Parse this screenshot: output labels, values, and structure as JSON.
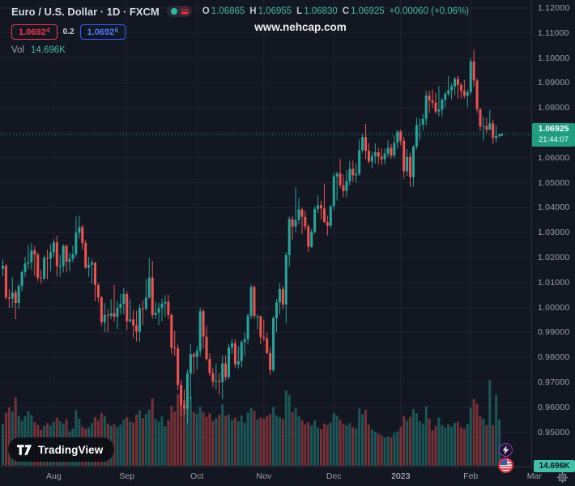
{
  "header": {
    "symbol_title": "Euro / U.S. Dollar · 1D · FXCM",
    "ohlc": {
      "o_label": "O",
      "o": "1.06865",
      "h_label": "H",
      "h": "1.06955",
      "l_label": "L",
      "l": "1.06830",
      "c_label": "C",
      "c": "1.06925",
      "change": "+0.00060 (+0.06%)"
    },
    "bid": "1.0692",
    "bid_sup": "4",
    "spread": "0.2",
    "ask": "1.0692",
    "ask_sup": "6",
    "vol_label": "Vol",
    "vol_value": "14.696K"
  },
  "watermark": "www.nehcap.com",
  "logo": {
    "wordmark": "TradingView"
  },
  "labels": {
    "last_price": "1.06925",
    "countdown": "21:44:07",
    "last_volume": "14.696K"
  },
  "colors": {
    "background": "#131722",
    "up": "#26a69a",
    "down": "#ef5350",
    "grid": "#1e2430",
    "bid_red": "#f23645",
    "ask_blue": "#2962ff",
    "price_label_bg": "#1f9e82",
    "vol_label_bg": "#41c0a9",
    "axis_text": "#9aa0aa"
  },
  "chart_data": {
    "type": "candlestick",
    "title": "Euro / U.S. Dollar, 1D, FXCM",
    "legend_position": "top-left",
    "grid": true,
    "y_axis": {
      "min": 0.95,
      "max": 1.12,
      "tick_step": 0.01,
      "labels": [
        "1.12000",
        "1.11000",
        "1.10000",
        "1.09000",
        "1.08000",
        "1.07000",
        "1.06000",
        "1.05000",
        "1.04000",
        "1.03000",
        "1.02000",
        "1.01000",
        "1.00000",
        "0.99000",
        "0.98000",
        "0.97000",
        "0.96000",
        "0.95000"
      ]
    },
    "x_axis": {
      "labels": [
        {
          "text": "Aug",
          "index": 16
        },
        {
          "text": "Sep",
          "index": 39
        },
        {
          "text": "Oct",
          "index": 61
        },
        {
          "text": "Nov",
          "index": 82
        },
        {
          "text": "Dec",
          "index": 104
        },
        {
          "text": "2023",
          "index": 125,
          "year": true
        },
        {
          "text": "Feb",
          "index": 147
        },
        {
          "text": "Mar",
          "index": 167
        }
      ]
    },
    "last": {
      "close": 1.06925,
      "countdown": "21:44:07",
      "volume_k": 14.696
    },
    "volume_unit": "K",
    "candles_format": [
      "open",
      "high",
      "low",
      "close",
      "volume_k"
    ],
    "candles": [
      [
        1.0155,
        1.0192,
        1.0125,
        1.0168,
        13.2
      ],
      [
        1.0168,
        1.0175,
        1.0032,
        1.004,
        16.8
      ],
      [
        1.004,
        1.0074,
        0.9998,
        1.0036,
        18.4
      ],
      [
        1.0036,
        1.0122,
        1.0,
        1.006,
        17.1
      ],
      [
        1.006,
        1.0072,
        0.9953,
        1.0018,
        21.6
      ],
      [
        1.0018,
        1.0095,
        0.9995,
        1.0086,
        15.9
      ],
      [
        1.0086,
        1.0149,
        1.0065,
        1.0142,
        14.2
      ],
      [
        1.0142,
        1.0202,
        1.0122,
        1.0176,
        15.7
      ],
      [
        1.0176,
        1.025,
        1.0155,
        1.0182,
        17.3
      ],
      [
        1.0182,
        1.0258,
        1.015,
        1.0228,
        16.1
      ],
      [
        1.0228,
        1.0246,
        1.0128,
        1.0212,
        13.8
      ],
      [
        1.0212,
        1.022,
        1.0105,
        1.0119,
        12.9
      ],
      [
        1.0119,
        1.0151,
        1.0096,
        1.0116,
        11.4
      ],
      [
        1.0116,
        1.0208,
        1.0108,
        1.0199,
        12.6
      ],
      [
        1.0199,
        1.0232,
        1.0113,
        1.0196,
        13.5
      ],
      [
        1.0196,
        1.0254,
        1.0144,
        1.0221,
        12.8
      ],
      [
        1.0221,
        1.0274,
        1.0202,
        1.0261,
        13.9
      ],
      [
        1.0261,
        1.0288,
        1.0124,
        1.0166,
        15.2
      ],
      [
        1.0166,
        1.021,
        1.0123,
        1.0166,
        14.1
      ],
      [
        1.0166,
        1.0254,
        1.014,
        1.0247,
        13.3
      ],
      [
        1.0247,
        1.0251,
        1.0141,
        1.0183,
        14.7
      ],
      [
        1.0183,
        1.0221,
        1.0145,
        1.0194,
        10.9
      ],
      [
        1.0194,
        1.0248,
        1.0181,
        1.0213,
        11.8
      ],
      [
        1.0213,
        1.0364,
        1.0202,
        1.0299,
        17.6
      ],
      [
        1.0299,
        1.0368,
        1.0276,
        1.0322,
        14.9
      ],
      [
        1.0322,
        1.0332,
        1.0232,
        1.0258,
        12.4
      ],
      [
        1.0258,
        1.0269,
        1.0154,
        1.016,
        11.7
      ],
      [
        1.016,
        1.0203,
        1.0122,
        1.0171,
        12.2
      ],
      [
        1.0171,
        1.0192,
        1.0096,
        1.018,
        13.6
      ],
      [
        1.018,
        1.0183,
        1.0026,
        1.009,
        15.4
      ],
      [
        1.009,
        1.0098,
        1.0021,
        1.004,
        14.3
      ],
      [
        1.004,
        1.0046,
        0.9926,
        0.9941,
        16.7
      ],
      [
        0.9941,
        1.0018,
        0.9901,
        0.997,
        15.8
      ],
      [
        0.997,
        0.9992,
        0.9899,
        0.9967,
        13.4
      ],
      [
        0.9967,
        1.0033,
        0.9953,
        0.9977,
        12.7
      ],
      [
        0.9977,
        1.009,
        0.9944,
        0.9963,
        13.1
      ],
      [
        0.9963,
        1.0027,
        0.9914,
        0.9999,
        12.3
      ],
      [
        0.9999,
        1.0055,
        0.9972,
        1.0015,
        13.0
      ],
      [
        1.0015,
        1.0079,
        0.9972,
        1.0054,
        14.6
      ],
      [
        1.0054,
        1.0064,
        0.991,
        0.9945,
        15.3
      ],
      [
        0.9945,
        1.0033,
        0.9939,
        0.9952,
        14.0
      ],
      [
        0.9952,
        0.9989,
        0.9878,
        0.9928,
        13.7
      ],
      [
        0.9928,
        0.9987,
        0.9864,
        0.9903,
        16.2
      ],
      [
        0.9903,
        1.0013,
        0.9863,
        0.9997,
        17.5
      ],
      [
        0.9997,
        1.0029,
        0.993,
        0.9995,
        15.1
      ],
      [
        0.9995,
        1.0113,
        0.9987,
        1.004,
        16.4
      ],
      [
        1.004,
        1.0198,
        1.0035,
        1.012,
        17.8
      ],
      [
        1.012,
        1.0187,
        0.9955,
        0.997,
        21.3
      ],
      [
        0.997,
        1.0023,
        0.9954,
        0.9979,
        14.8
      ],
      [
        0.9979,
        1.0018,
        0.993,
        0.9998,
        13.9
      ],
      [
        0.9998,
        1.0036,
        0.9945,
        1.0016,
        15.6
      ],
      [
        1.0016,
        1.005,
        0.9964,
        1.0023,
        12.5
      ],
      [
        1.0023,
        1.0051,
        0.9954,
        0.997,
        14.4
      ],
      [
        0.997,
        0.9976,
        0.9813,
        0.9838,
        18.9
      ],
      [
        0.9838,
        0.9907,
        0.9807,
        0.9835,
        17.2
      ],
      [
        0.9835,
        0.9852,
        0.9668,
        0.969,
        22.7
      ],
      [
        0.969,
        0.9709,
        0.9565,
        0.9609,
        24.1
      ],
      [
        0.9609,
        0.9671,
        0.957,
        0.9594,
        20.8
      ],
      [
        0.9594,
        0.975,
        0.9536,
        0.9735,
        26.5
      ],
      [
        0.9735,
        0.9853,
        0.9634,
        0.9813,
        21.9
      ],
      [
        0.9813,
        0.982,
        0.9733,
        0.9802,
        17.0
      ],
      [
        0.9802,
        0.9844,
        0.9751,
        0.9826,
        16.5
      ],
      [
        0.9826,
        0.9999,
        0.9804,
        0.9985,
        18.7
      ],
      [
        0.9985,
        0.9994,
        0.9835,
        0.9883,
        16.9
      ],
      [
        0.9883,
        0.9926,
        0.9787,
        0.9793,
        15.5
      ],
      [
        0.9793,
        0.9816,
        0.9726,
        0.9737,
        16.6
      ],
      [
        0.9737,
        0.9758,
        0.9682,
        0.9703,
        14.2
      ],
      [
        0.9703,
        0.9775,
        0.967,
        0.9706,
        15.0
      ],
      [
        0.9706,
        0.9738,
        0.9651,
        0.9702,
        16.1
      ],
      [
        0.9702,
        0.9807,
        0.9632,
        0.9776,
        19.4
      ],
      [
        0.9776,
        0.9808,
        0.9707,
        0.9721,
        15.8
      ],
      [
        0.9721,
        0.9853,
        0.9712,
        0.984,
        16.3
      ],
      [
        0.984,
        0.9875,
        0.9813,
        0.9857,
        14.5
      ],
      [
        0.9857,
        0.9874,
        0.9758,
        0.9772,
        15.2
      ],
      [
        0.9772,
        0.9845,
        0.9755,
        0.9785,
        14.1
      ],
      [
        0.9785,
        0.987,
        0.976,
        0.9861,
        15.9
      ],
      [
        0.9861,
        0.9899,
        0.9808,
        0.9873,
        13.6
      ],
      [
        0.9873,
        0.9976,
        0.9851,
        0.9967,
        16.8
      ],
      [
        0.9967,
        1.0093,
        0.9953,
        1.0082,
        18.2
      ],
      [
        1.0082,
        1.0089,
        0.9955,
        0.9965,
        17.4
      ],
      [
        0.9965,
        0.9972,
        0.9913,
        0.9965,
        14.7
      ],
      [
        0.9965,
        0.9968,
        0.9853,
        0.9882,
        15.3
      ],
      [
        0.9882,
        0.9951,
        0.9866,
        0.9876,
        14.9
      ],
      [
        0.9876,
        0.9898,
        0.9812,
        0.9817,
        15.7
      ],
      [
        0.9817,
        0.984,
        0.973,
        0.9749,
        16.4
      ],
      [
        0.9749,
        0.9966,
        0.9741,
        0.9957,
        18.6
      ],
      [
        0.9957,
        1.0034,
        0.9901,
        1.002,
        16.0
      ],
      [
        1.002,
        1.0096,
        0.9972,
        1.0074,
        15.4
      ],
      [
        1.0074,
        1.0086,
        0.9993,
        1.0012,
        14.8
      ],
      [
        1.0012,
        1.0222,
        0.9936,
        1.021,
        23.8
      ],
      [
        1.021,
        1.0364,
        1.0163,
        1.0354,
        22.4
      ],
      [
        1.0354,
        1.0368,
        1.0271,
        1.0325,
        16.9
      ],
      [
        1.0325,
        1.0481,
        1.0301,
        1.035,
        18.3
      ],
      [
        1.035,
        1.0438,
        1.0334,
        1.0393,
        15.6
      ],
      [
        1.0393,
        1.04,
        1.0294,
        1.0363,
        14.4
      ],
      [
        1.0363,
        1.0388,
        1.031,
        1.0325,
        13.2
      ],
      [
        1.0325,
        1.0334,
        1.0223,
        1.0243,
        13.8
      ],
      [
        1.0243,
        1.0315,
        1.0239,
        1.0303,
        12.7
      ],
      [
        1.0303,
        1.0405,
        1.0295,
        1.0395,
        14.3
      ],
      [
        1.0395,
        1.0448,
        1.038,
        1.041,
        12.1
      ],
      [
        1.041,
        1.0428,
        1.0353,
        1.0397,
        11.6
      ],
      [
        1.0397,
        1.0497,
        1.034,
        1.0342,
        13.4
      ],
      [
        1.0342,
        1.0369,
        1.0289,
        1.0328,
        12.9
      ],
      [
        1.0328,
        1.041,
        1.0318,
        1.0406,
        13.7
      ],
      [
        1.0406,
        1.0539,
        1.0391,
        1.0525,
        16.7
      ],
      [
        1.0525,
        1.0545,
        1.0428,
        1.0537,
        15.9
      ],
      [
        1.0537,
        1.0595,
        1.0478,
        1.049,
        14.6
      ],
      [
        1.049,
        1.0533,
        1.0442,
        1.0467,
        13.3
      ],
      [
        1.0467,
        1.055,
        1.0442,
        1.0506,
        12.8
      ],
      [
        1.0506,
        1.0587,
        1.0489,
        1.0556,
        13.5
      ],
      [
        1.0556,
        1.0589,
        1.0504,
        1.053,
        12.2
      ],
      [
        1.053,
        1.058,
        1.05,
        1.0536,
        11.9
      ],
      [
        1.0536,
        1.0673,
        1.0528,
        1.0631,
        18.1
      ],
      [
        1.0631,
        1.0695,
        1.062,
        1.0683,
        16.3
      ],
      [
        1.0683,
        1.0736,
        1.0594,
        1.0628,
        17.7
      ],
      [
        1.0628,
        1.066,
        1.0577,
        1.0585,
        13.0
      ],
      [
        1.0585,
        1.0624,
        1.0558,
        1.0607,
        11.5
      ],
      [
        1.0607,
        1.0658,
        1.0576,
        1.0622,
        10.8
      ],
      [
        1.0622,
        1.064,
        1.0574,
        1.0604,
        10.1
      ],
      [
        1.0604,
        1.0637,
        1.0571,
        1.0594,
        9.7
      ],
      [
        1.0594,
        1.0636,
        1.0573,
        1.0617,
        8.9
      ],
      [
        1.0617,
        1.067,
        1.0603,
        1.064,
        9.3
      ],
      [
        1.064,
        1.0656,
        1.0596,
        1.0609,
        9.0
      ],
      [
        1.0609,
        1.0689,
        1.0598,
        1.066,
        10.4
      ],
      [
        1.066,
        1.0712,
        1.0636,
        1.0705,
        10.9
      ],
      [
        1.0705,
        1.0713,
        1.065,
        1.0668,
        12.3
      ],
      [
        1.0668,
        1.0684,
        1.0519,
        1.0546,
        15.8
      ],
      [
        1.0546,
        1.0635,
        1.0528,
        1.0604,
        14.2
      ],
      [
        1.0604,
        1.0621,
        1.0483,
        1.0522,
        15.5
      ],
      [
        1.0522,
        1.0651,
        1.0484,
        1.0644,
        17.9
      ],
      [
        1.0644,
        1.0761,
        1.0634,
        1.0731,
        16.6
      ],
      [
        1.0731,
        1.0759,
        1.0669,
        1.0733,
        14.1
      ],
      [
        1.0733,
        1.0776,
        1.0711,
        1.0756,
        13.4
      ],
      [
        1.0756,
        1.0868,
        1.0729,
        1.0849,
        18.8
      ],
      [
        1.0849,
        1.0869,
        1.0781,
        1.083,
        14.9
      ],
      [
        1.083,
        1.0874,
        1.08,
        1.0821,
        11.2
      ],
      [
        1.0821,
        1.086,
        1.0775,
        1.0786,
        12.6
      ],
      [
        1.0786,
        1.0887,
        1.0766,
        1.0793,
        15.3
      ],
      [
        1.0793,
        1.0839,
        1.0765,
        1.0833,
        12.8
      ],
      [
        1.0833,
        1.0868,
        1.0802,
        1.0856,
        12.0
      ],
      [
        1.0856,
        1.0927,
        1.0846,
        1.087,
        13.1
      ],
      [
        1.087,
        1.0898,
        1.0835,
        1.0886,
        12.4
      ],
      [
        1.0886,
        1.0925,
        1.0852,
        1.0916,
        13.6
      ],
      [
        1.0916,
        1.0929,
        1.0836,
        1.0892,
        13.9
      ],
      [
        1.0892,
        1.09,
        1.0838,
        1.0868,
        12.2
      ],
      [
        1.0868,
        1.0913,
        1.0838,
        1.0849,
        11.7
      ],
      [
        1.0849,
        1.0874,
        1.0802,
        1.0863,
        13.3
      ],
      [
        1.0863,
        1.1001,
        1.0852,
        1.0987,
        18.4
      ],
      [
        1.0987,
        1.1033,
        1.0885,
        1.091,
        21.2
      ],
      [
        1.091,
        1.0918,
        1.078,
        1.0795,
        19.6
      ],
      [
        1.0795,
        1.0798,
        1.0709,
        1.0725,
        15.7
      ],
      [
        1.0725,
        1.0766,
        1.0669,
        1.0727,
        14.8
      ],
      [
        1.0727,
        1.0761,
        1.07,
        1.0713,
        12.9
      ],
      [
        1.0713,
        1.0791,
        1.0711,
        1.0738,
        27.2
      ],
      [
        1.0738,
        1.0753,
        1.0656,
        1.0679,
        12.8
      ],
      [
        1.0679,
        1.0729,
        1.0662,
        1.0687,
        22.4
      ],
      [
        1.06865,
        1.06955,
        1.0683,
        1.06925,
        14.696
      ]
    ]
  }
}
